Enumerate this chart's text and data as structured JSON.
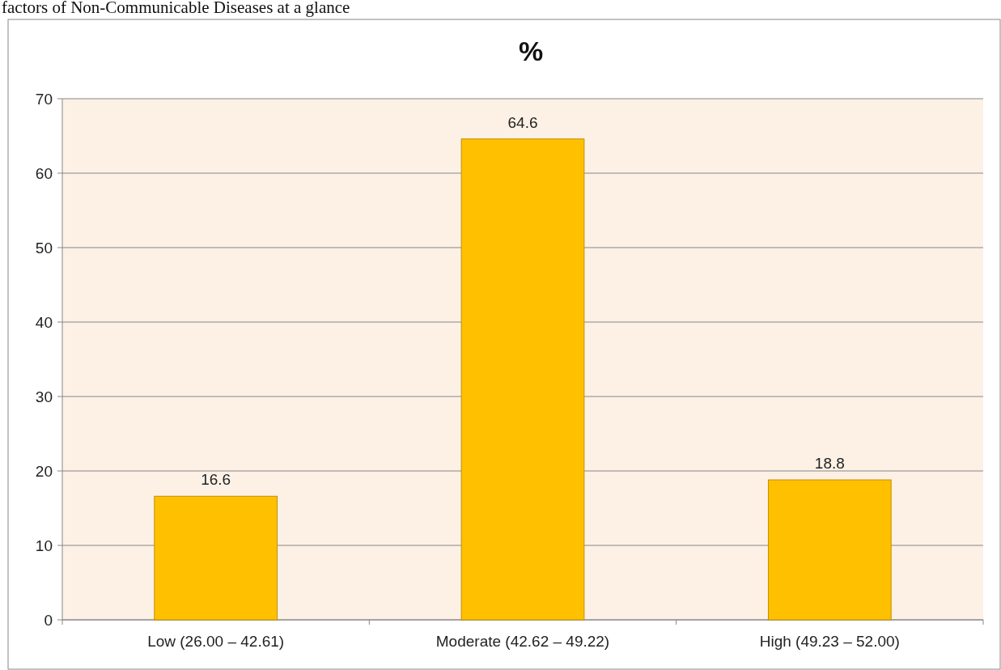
{
  "chart_data": {
    "type": "bar",
    "title": "%",
    "annotations": [
      "factors of Non-Communicable Diseases at a glance"
    ],
    "categories": [
      "Low (26.00 – 42.61)",
      "Moderate (42.62 – 49.22)",
      "High (49.23 – 52.00)"
    ],
    "values": [
      16.6,
      64.6,
      18.8
    ],
    "color": "#ffc000",
    "data_labels": true,
    "ylim": [
      0,
      70
    ],
    "yticks": [
      0,
      10,
      20,
      30,
      40,
      50,
      60,
      70
    ],
    "grid": "y"
  }
}
